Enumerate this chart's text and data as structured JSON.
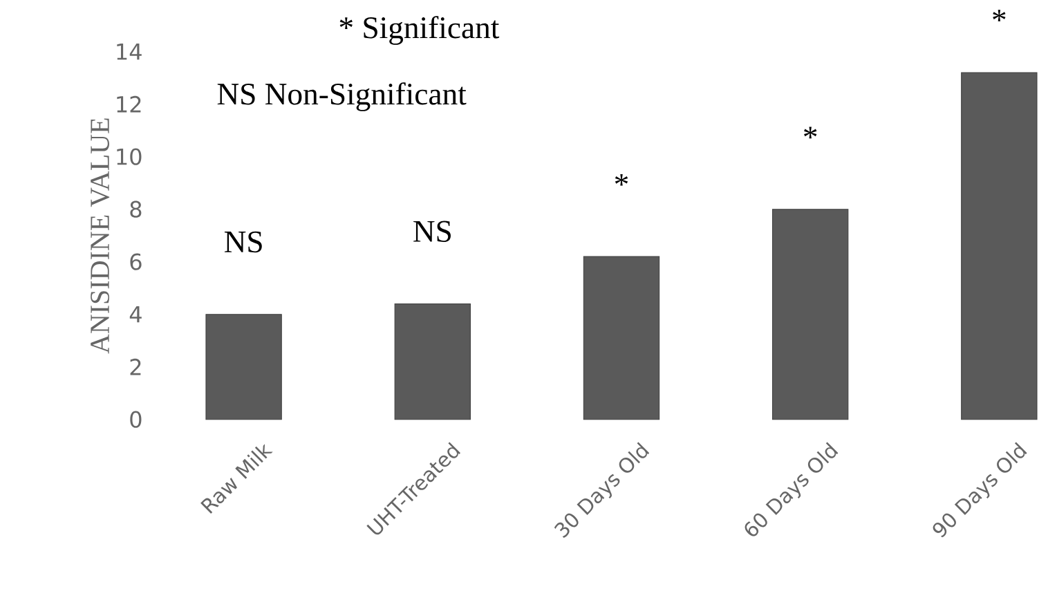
{
  "chart_data": {
    "type": "bar",
    "ylabel": "ANISIDINE VALUE",
    "categories": [
      "Raw Milk",
      "UHT-Treated",
      "30 Days Old",
      "60 Days Old",
      "90 Days Old"
    ],
    "values": [
      4.0,
      4.4,
      6.2,
      8.0,
      13.2
    ],
    "color": "#5a5a5a",
    "ylim": [
      0,
      14
    ],
    "yticks": [
      0,
      2,
      4,
      6,
      8,
      10,
      12,
      14
    ],
    "annotations": [
      "* Significant",
      "NS Non-Significant",
      "NS",
      "NS",
      "*",
      "*",
      "*"
    ]
  }
}
